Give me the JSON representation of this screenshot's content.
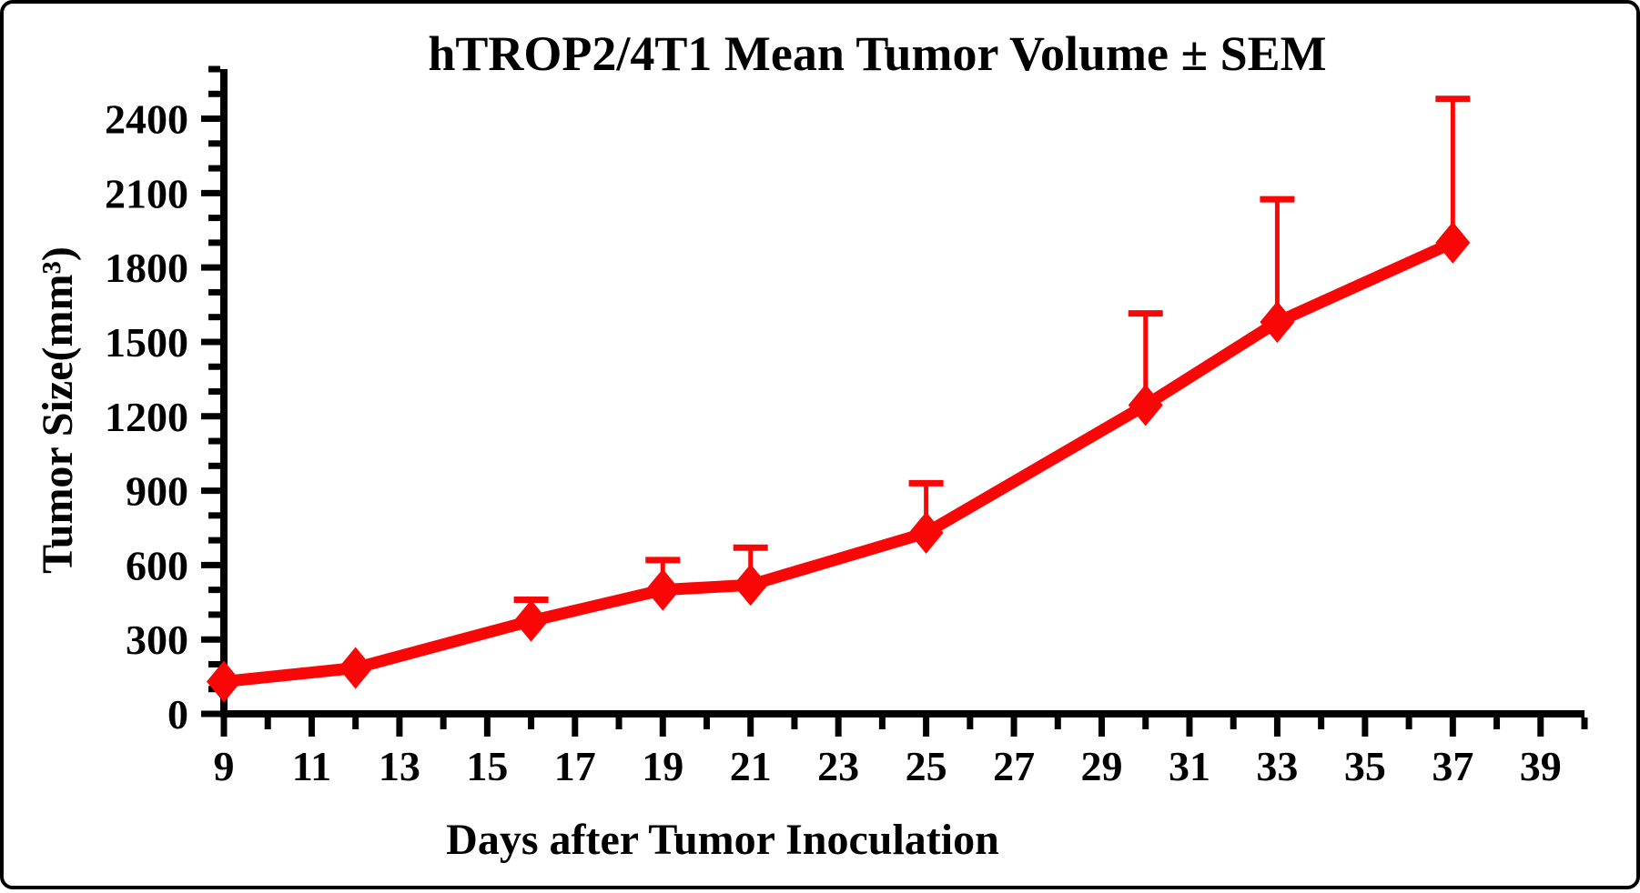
{
  "title": "hTROP2/4T1 Mean Tumor Volume ± SEM",
  "chart_data": {
    "type": "line",
    "title": "hTROP2/4T1 Mean Tumor Volume ± SEM",
    "xlabel": "Days after Tumor Inoculation",
    "ylabel": "Tumor Size(mm³)",
    "x": [
      9,
      12,
      16,
      19,
      21,
      25,
      30,
      33,
      37
    ],
    "series": [
      {
        "name": "hTROP2/4T1 mean tumor volume",
        "values": [
          130,
          185,
          375,
          500,
          520,
          730,
          1245,
          1580,
          1900
        ],
        "sem_upper": [
          0,
          0,
          85,
          120,
          150,
          200,
          370,
          495,
          580
        ]
      }
    ],
    "error_bars": "upper SEM only",
    "marker": "diamond",
    "line_color": "#fa0606",
    "axis_color": "#000000",
    "xlim": [
      9,
      40
    ],
    "ylim": [
      0,
      2600
    ],
    "x_major_ticks": [
      9,
      11,
      13,
      15,
      17,
      19,
      21,
      23,
      25,
      27,
      29,
      31,
      33,
      35,
      37,
      39
    ],
    "x_minor_step": 1,
    "y_major_ticks": [
      0,
      300,
      600,
      900,
      1200,
      1500,
      1800,
      2100,
      2400
    ],
    "y_minor_step": 100,
    "grid": false,
    "legend": "none"
  }
}
